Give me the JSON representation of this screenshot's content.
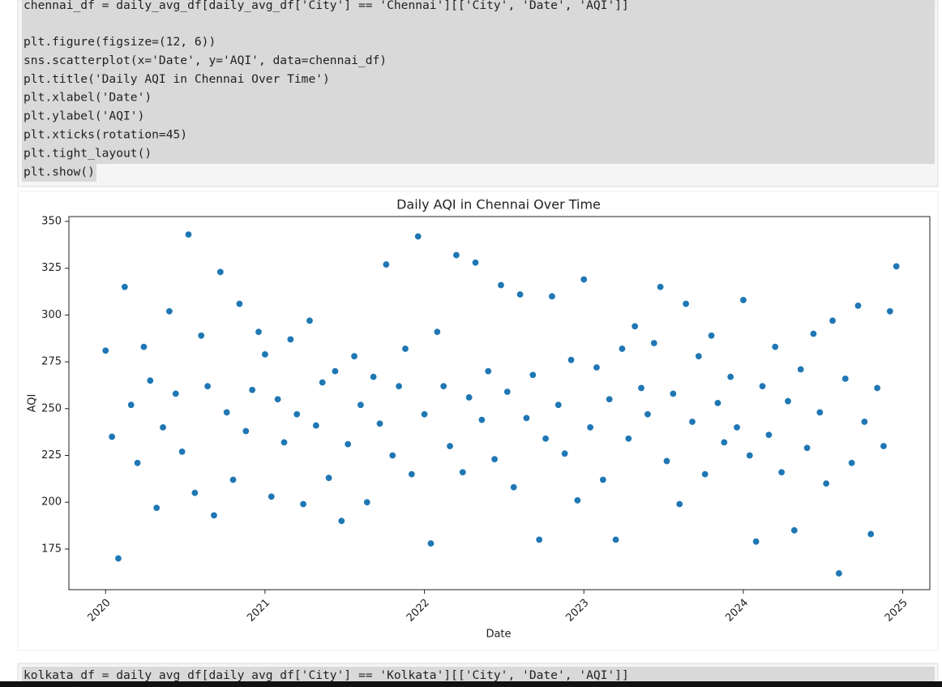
{
  "cells": [
    {
      "lines": [
        "chennai_df = daily_avg_df[daily_avg_df['City'] == 'Chennai'][['City', 'Date', 'AQI']]",
        "plt.figure(figsize=(12, 6))",
        "sns.scatterplot(x='Date', y='AQI', data=chennai_df)",
        "plt.title('Daily AQI in Chennai Over Time')",
        "plt.xlabel('Date')",
        "plt.ylabel('AQI')",
        "plt.xticks(rotation=45)",
        "plt.tight_layout()",
        "plt.show()"
      ]
    },
    {
      "lines": [
        "kolkata_df = daily_avg_df[daily_avg_df['City'] == 'Kolkata'][['City', 'Date', 'AQI']]"
      ]
    }
  ],
  "chart_data": {
    "type": "scatter",
    "title": "Daily AQI in Chennai Over Time",
    "xlabel": "Date",
    "ylabel": "AQI",
    "color": "#1f77b4",
    "x": [
      2020,
      2020.04,
      2020.08,
      2020.12,
      2020.16,
      2020.2,
      2020.24,
      2020.28,
      2020.32,
      2020.36,
      2020.4,
      2020.44,
      2020.48,
      2020.52,
      2020.56,
      2020.6,
      2020.64,
      2020.68,
      2020.72,
      2020.76,
      2020.8,
      2020.84,
      2020.88,
      2020.92,
      2020.96,
      2021,
      2021.04,
      2021.08,
      2021.12,
      2021.16,
      2021.2,
      2021.24,
      2021.28,
      2021.32,
      2021.36,
      2021.4,
      2021.44,
      2021.48,
      2021.52,
      2021.56,
      2021.6,
      2021.64,
      2021.68,
      2021.72,
      2021.76,
      2021.8,
      2021.84,
      2021.88,
      2021.92,
      2021.96,
      2022,
      2022.04,
      2022.08,
      2022.12,
      2022.16,
      2022.2,
      2022.24,
      2022.28,
      2022.32,
      2022.36,
      2022.4,
      2022.44,
      2022.48,
      2022.52,
      2022.56,
      2022.6,
      2022.64,
      2022.68,
      2022.72,
      2022.76,
      2022.8,
      2022.84,
      2022.88,
      2022.92,
      2022.96,
      2023,
      2023.04,
      2023.08,
      2023.12,
      2023.16,
      2023.2,
      2023.24,
      2023.28,
      2023.32,
      2023.36,
      2023.4,
      2023.44,
      2023.48,
      2023.52,
      2023.56,
      2023.6,
      2023.64,
      2023.68,
      2023.72,
      2023.76,
      2023.8,
      2023.84,
      2023.88,
      2023.92,
      2023.96,
      2024,
      2024.04,
      2024.08,
      2024.12,
      2024.16,
      2024.2,
      2024.24,
      2024.28,
      2024.32,
      2024.36,
      2024.4,
      2024.44,
      2024.48,
      2024.52,
      2024.56,
      2024.6,
      2024.64,
      2024.68,
      2024.72,
      2024.76,
      2024.8,
      2024.84,
      2024.88,
      2024.92,
      2024.96
    ],
    "values": [
      281,
      235,
      170,
      315,
      252,
      221,
      283,
      265,
      197,
      240,
      302,
      258,
      227,
      343,
      205,
      289,
      262,
      193,
      323,
      248,
      212,
      306,
      238,
      260,
      291,
      279,
      203,
      255,
      232,
      287,
      247,
      199,
      297,
      241,
      264,
      213,
      270,
      190,
      231,
      278,
      252,
      200,
      267,
      242,
      327,
      225,
      262,
      282,
      215,
      342,
      247,
      178,
      291,
      262,
      230,
      332,
      216,
      256,
      328,
      244,
      270,
      223,
      316,
      259,
      208,
      311,
      245,
      268,
      180,
      234,
      310,
      252,
      226,
      276,
      201,
      319,
      240,
      272,
      212,
      255,
      180,
      282,
      234,
      294,
      261,
      247,
      285,
      315,
      222,
      258,
      199,
      306,
      243,
      278,
      215,
      289,
      253,
      232,
      267,
      240,
      308,
      225,
      179,
      262,
      236,
      283,
      216,
      254,
      185,
      271,
      229,
      290,
      248,
      210,
      297,
      162,
      266,
      221,
      305,
      243,
      183,
      261,
      230,
      302,
      326
    ],
    "xlim": [
      2019.77,
      2025.17
    ],
    "xticks": [
      2020,
      2021,
      2022,
      2023,
      2024,
      2025
    ],
    "ylim": [
      153.3,
      352.6
    ],
    "yticks": [
      175,
      200,
      225,
      250,
      275,
      300,
      325,
      350
    ]
  }
}
